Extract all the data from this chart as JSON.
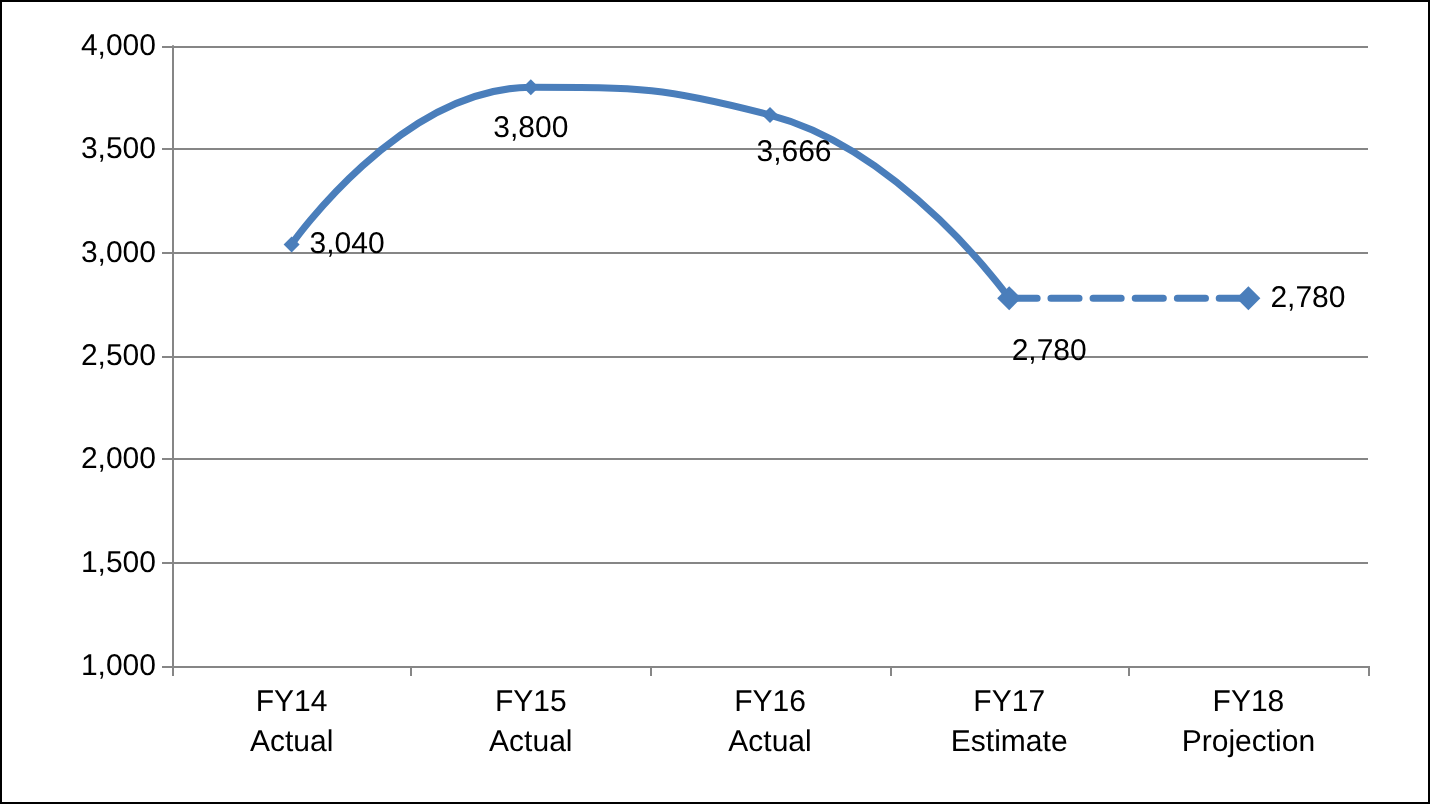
{
  "chart_data": {
    "type": "line",
    "categories": [
      "FY14\nActual",
      "FY15\nActual",
      "FY16\nActual",
      "FY17\nEstimate",
      "FY18\nProjection"
    ],
    "series": [
      {
        "color": "#4a7ebb",
        "line_style": "solid",
        "values": [
          3040,
          3800,
          3666,
          2780,
          null
        ],
        "value_labels": [
          "3,040",
          "3,800",
          "3,666",
          "2,780",
          null
        ]
      },
      {
        "color": "#4a7ebb",
        "line_style": "dashed",
        "values": [
          null,
          null,
          null,
          2780,
          2780
        ],
        "value_labels": [
          null,
          null,
          null,
          null,
          "2,780"
        ]
      }
    ],
    "ylim": [
      1000,
      4000
    ],
    "yticks": [
      {
        "value": 1000,
        "label": "1,000"
      },
      {
        "value": 1500,
        "label": "1,500"
      },
      {
        "value": 2000,
        "label": "2,000"
      },
      {
        "value": 2500,
        "label": "2,500"
      },
      {
        "value": 3000,
        "label": "3,000"
      },
      {
        "value": 3500,
        "label": "3,500"
      },
      {
        "value": 4000,
        "label": "4,000"
      }
    ],
    "grid": "y",
    "marker": "diamond"
  }
}
